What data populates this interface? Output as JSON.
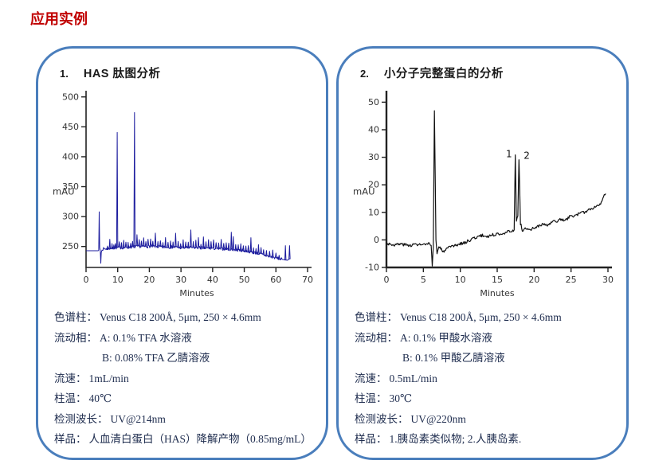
{
  "page": {
    "title": "应用实例",
    "title_color": "#c00000",
    "panel_border_color": "#4a7ebc",
    "text_color": "#1e2c4e"
  },
  "panels": [
    {
      "number": "1.",
      "title": "HAS 肽图分析",
      "specs": [
        {
          "label": "色谱柱：",
          "value": "Venus C18 200Å, 5μm, 250 × 4.6mm",
          "indent": false
        },
        {
          "label": "流动相：",
          "value": "A: 0.1% TFA 水溶液",
          "indent": false
        },
        {
          "label": "",
          "value": "B: 0.08% TFA 乙腈溶液",
          "indent": true
        },
        {
          "label": "流速：",
          "value": "1mL/min",
          "indent": false
        },
        {
          "label": "柱温：",
          "value": "40℃",
          "indent": false
        },
        {
          "label": "检测波长：",
          "value": "UV@214nm",
          "indent": false
        },
        {
          "label": "样品：",
          "value": "人血清白蛋白（HAS）降解产物（0.85mg/mL）",
          "indent": false
        }
      ]
    },
    {
      "number": "2.",
      "title": "小分子完整蛋白的分析",
      "specs": [
        {
          "label": "色谱柱：",
          "value": "Venus C18 200Å, 5μm, 250 × 4.6mm",
          "indent": false
        },
        {
          "label": "流动相：",
          "value": "A: 0.1% 甲酸水溶液",
          "indent": false
        },
        {
          "label": "",
          "value": "B: 0.1% 甲酸乙腈溶液",
          "indent": true
        },
        {
          "label": "流速：",
          "value": "0.5mL/min",
          "indent": false
        },
        {
          "label": "柱温：",
          "value": "30℃",
          "indent": false
        },
        {
          "label": "检测波长：",
          "value": "UV@220nm",
          "indent": false
        },
        {
          "label": "样品：",
          "value": "1.胰岛素类似物; 2.人胰岛素.",
          "indent": false
        }
      ]
    }
  ],
  "chart_data": [
    {
      "type": "line",
      "title": "HAS 肽图分析 chromatogram",
      "xlabel": "Minutes",
      "ylabel": "mAU",
      "xlim": [
        0,
        70
      ],
      "ylim": [
        215,
        505
      ],
      "xticks": [
        0,
        10,
        20,
        30,
        40,
        50,
        60,
        70
      ],
      "yticks": [
        250,
        300,
        350,
        400,
        450,
        500
      ],
      "grid": false,
      "legend": false,
      "line_color": "#1c1c9e",
      "line_width": 1,
      "thick_bottom": false,
      "sample_step": 0.15,
      "noise": {
        "amplitude": 2.4,
        "range": [
          5.2,
          62
        ],
        "seed": 7
      },
      "anchors": [
        [
          0,
          243
        ],
        [
          3.85,
          243
        ],
        [
          4.0,
          244
        ],
        [
          4.15,
          308
        ],
        [
          4.3,
          248
        ],
        [
          4.5,
          243
        ],
        [
          4.65,
          222
        ],
        [
          4.8,
          240
        ],
        [
          5.2,
          246
        ],
        [
          6,
          246
        ],
        [
          8,
          247
        ],
        [
          10,
          248
        ],
        [
          12,
          248
        ],
        [
          14,
          249
        ],
        [
          16,
          250
        ],
        [
          18,
          250
        ],
        [
          20,
          250
        ],
        [
          22,
          250
        ],
        [
          24,
          249
        ],
        [
          26,
          249
        ],
        [
          28,
          249
        ],
        [
          30,
          248
        ],
        [
          32,
          248
        ],
        [
          34,
          248
        ],
        [
          36,
          248
        ],
        [
          38,
          247
        ],
        [
          40,
          247
        ],
        [
          42,
          246
        ],
        [
          44,
          246
        ],
        [
          46,
          245
        ],
        [
          48,
          244
        ],
        [
          50,
          243
        ],
        [
          52,
          241
        ],
        [
          54,
          239
        ],
        [
          56,
          236
        ],
        [
          58,
          233
        ],
        [
          60,
          231
        ],
        [
          61.5,
          229
        ],
        [
          62.5,
          228
        ],
        [
          63.6,
          227
        ],
        [
          64.5,
          230
        ]
      ],
      "spikes": [
        [
          6.8,
          6
        ],
        [
          7.5,
          16
        ],
        [
          8.2,
          9
        ],
        [
          8.8,
          7
        ],
        [
          9.3,
          6
        ],
        [
          9.85,
          192
        ],
        [
          10.5,
          8
        ],
        [
          11.2,
          9
        ],
        [
          11.9,
          13
        ],
        [
          12.6,
          8
        ],
        [
          13.3,
          10
        ],
        [
          14.1,
          7
        ],
        [
          14.7,
          9
        ],
        [
          15.3,
          226
        ],
        [
          16.1,
          18
        ],
        [
          16.8,
          10
        ],
        [
          17.5,
          8
        ],
        [
          18.2,
          13
        ],
        [
          18.9,
          8
        ],
        [
          19.6,
          10
        ],
        [
          20.4,
          12
        ],
        [
          21.1,
          8
        ],
        [
          21.9,
          20
        ],
        [
          22.7,
          10
        ],
        [
          23.5,
          8
        ],
        [
          24.3,
          9
        ],
        [
          25.1,
          16
        ],
        [
          25.9,
          8
        ],
        [
          26.7,
          12
        ],
        [
          27.5,
          9
        ],
        [
          28.3,
          22
        ],
        [
          29.1,
          10
        ],
        [
          29.9,
          8
        ],
        [
          30.7,
          14
        ],
        [
          31.5,
          8
        ],
        [
          32.3,
          10
        ],
        [
          33.1,
          28
        ],
        [
          33.9,
          10
        ],
        [
          34.7,
          12
        ],
        [
          35.5,
          16
        ],
        [
          36.3,
          8
        ],
        [
          37.1,
          20
        ],
        [
          37.9,
          10
        ],
        [
          38.7,
          14
        ],
        [
          39.5,
          10
        ],
        [
          40.3,
          12
        ],
        [
          41.1,
          8
        ],
        [
          41.9,
          10
        ],
        [
          42.7,
          14
        ],
        [
          43.5,
          8
        ],
        [
          44.3,
          10
        ],
        [
          45.1,
          8
        ],
        [
          45.9,
          28
        ],
        [
          46.5,
          22
        ],
        [
          47.3,
          10
        ],
        [
          48.1,
          8
        ],
        [
          48.9,
          12
        ],
        [
          49.7,
          8
        ],
        [
          50.5,
          10
        ],
        [
          51.3,
          8
        ],
        [
          52.1,
          24
        ],
        [
          52.9,
          10
        ],
        [
          53.7,
          8
        ],
        [
          54.5,
          16
        ],
        [
          55.3,
          10
        ],
        [
          56.1,
          8
        ],
        [
          57,
          9
        ],
        [
          58,
          8
        ],
        [
          59,
          12
        ],
        [
          60,
          7
        ],
        [
          61,
          6
        ],
        [
          63,
          24
        ],
        [
          64.3,
          22
        ]
      ],
      "annotations": []
    },
    {
      "type": "line",
      "title": "小分子完整蛋白的分析 chromatogram",
      "xlabel": "Minutes",
      "ylabel": "mAU",
      "xlim": [
        0,
        30
      ],
      "ylim": [
        -10,
        53
      ],
      "xticks": [
        0,
        5,
        10,
        15,
        20,
        25,
        30
      ],
      "yticks": [
        -10,
        0,
        10,
        20,
        30,
        40,
        50
      ],
      "grid": false,
      "legend": false,
      "line_color": "#111111",
      "line_width": 1.2,
      "thick_bottom": true,
      "sample_step": 0.1,
      "noise": {
        "amplitude": 0.55,
        "range": [
          0,
          29.7
        ],
        "seed": 3
      },
      "anchors": [
        [
          0,
          -1.2
        ],
        [
          1,
          -1.8
        ],
        [
          2,
          -1.5
        ],
        [
          3,
          -2.0
        ],
        [
          4,
          -1.6
        ],
        [
          5,
          -1.8
        ],
        [
          5.8,
          -1.5
        ],
        [
          6.05,
          -2.5
        ],
        [
          6.2,
          -9
        ],
        [
          6.35,
          -2
        ],
        [
          6.5,
          46.5
        ],
        [
          6.7,
          0
        ],
        [
          6.85,
          -4.8
        ],
        [
          7.1,
          -2.6
        ],
        [
          7.35,
          -3
        ],
        [
          7.6,
          -4.6
        ],
        [
          8,
          -3.4
        ],
        [
          8.6,
          -2.8
        ],
        [
          9.2,
          -2.2
        ],
        [
          10,
          -1.4
        ],
        [
          10.8,
          -0.8
        ],
        [
          11.6,
          0.4
        ],
        [
          12.4,
          1.2
        ],
        [
          13,
          1.6
        ],
        [
          13.6,
          1.2
        ],
        [
          14.2,
          1.7
        ],
        [
          15,
          2.1
        ],
        [
          15.8,
          2.5
        ],
        [
          16.6,
          3.0
        ],
        [
          17.1,
          3.3
        ],
        [
          17.3,
          4.0
        ],
        [
          17.45,
          31
        ],
        [
          17.6,
          7
        ],
        [
          17.8,
          9
        ],
        [
          17.95,
          29
        ],
        [
          18.15,
          6
        ],
        [
          18.4,
          3.6
        ],
        [
          18.8,
          4.0
        ],
        [
          19.4,
          3.4
        ],
        [
          20,
          4.4
        ],
        [
          20.6,
          5.0
        ],
        [
          21.2,
          5.6
        ],
        [
          21.8,
          5.2
        ],
        [
          22.4,
          6.4
        ],
        [
          23,
          6.8
        ],
        [
          23.6,
          7.4
        ],
        [
          24.2,
          7.0
        ],
        [
          24.8,
          8.4
        ],
        [
          25.4,
          8.8
        ],
        [
          26,
          9.4
        ],
        [
          26.6,
          9.8
        ],
        [
          27.2,
          10.6
        ],
        [
          27.8,
          11.4
        ],
        [
          28.4,
          12.2
        ],
        [
          29,
          13.4
        ],
        [
          29.4,
          15.8
        ],
        [
          29.7,
          16.8
        ]
      ],
      "spikes": [],
      "annotations": [
        {
          "text": "1",
          "x": 16.6,
          "y": 30
        },
        {
          "text": "2",
          "x": 19.0,
          "y": 29.5
        }
      ]
    }
  ]
}
